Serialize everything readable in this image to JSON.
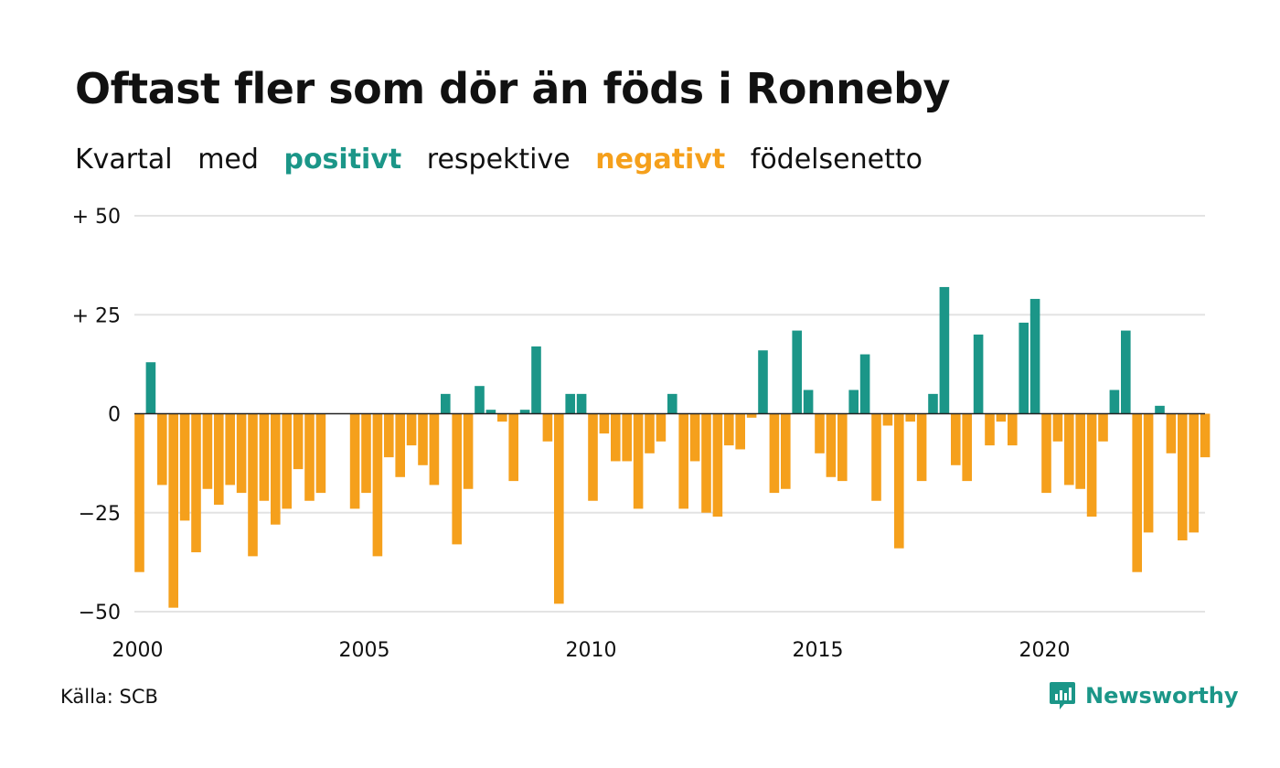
{
  "title": "Oftast fler som dör än föds i Ronneby",
  "subtitle": {
    "part1": "Kvartal",
    "part2": "med",
    "positive": "positivt",
    "part3": "respektive",
    "negative": "negativt",
    "part4": "födelsenetto"
  },
  "source": "Källa: SCB",
  "brand": "Newsworthy",
  "colors": {
    "positive": "#1b9688",
    "negative": "#f5a01c",
    "grid": "#e3e3e3",
    "zero_line": "#222222"
  },
  "chart_data": {
    "type": "bar",
    "x_start": "2000-Q1",
    "x_tick_labels": [
      "2000",
      "2005",
      "2010",
      "2015",
      "2020"
    ],
    "y_tick_labels": [
      "+ 50",
      "+ 25",
      "0",
      "−25",
      "−50"
    ],
    "ylim": [
      -50,
      50
    ],
    "grid": true,
    "values": [
      -40,
      13,
      -18,
      -49,
      -27,
      -35,
      -19,
      -23,
      -18,
      -20,
      -36,
      -22,
      -28,
      -24,
      -14,
      -22,
      -20,
      0,
      0,
      -24,
      -20,
      -36,
      -11,
      -16,
      -8,
      -13,
      -18,
      5,
      -33,
      -19,
      7,
      1,
      -2,
      -17,
      1,
      17,
      -7,
      -48,
      5,
      5,
      -22,
      -5,
      -12,
      -12,
      -24,
      -10,
      -7,
      5,
      -24,
      -12,
      -25,
      -26,
      -8,
      -9,
      -1,
      16,
      -20,
      -19,
      21,
      6,
      -10,
      -16,
      -17,
      6,
      15,
      -22,
      -3,
      -34,
      -2,
      -17,
      5,
      32,
      -13,
      -17,
      20,
      -8,
      -2,
      -8,
      23,
      29,
      -20,
      -7,
      -18,
      -19,
      -26,
      -7,
      6,
      21,
      -40,
      -30,
      2,
      -10,
      -32,
      -30,
      -11
    ]
  }
}
